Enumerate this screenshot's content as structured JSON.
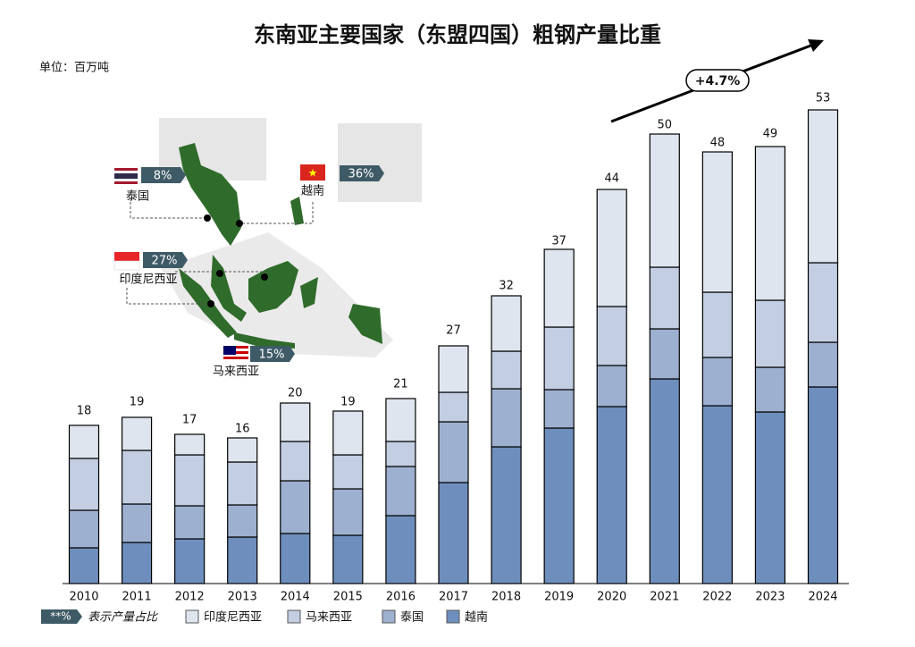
{
  "chart_data": {
    "type": "stacked_bar",
    "title": "东南亚主要国家（东盟四国）粗钢产量比重",
    "unit_label": "单位：百万吨",
    "growth_label": "+4.7%",
    "legend_note": {
      "symbol": "**%",
      "text": "表示产量占比"
    },
    "categories": [
      "2010",
      "2011",
      "2012",
      "2013",
      "2014",
      "2015",
      "2016",
      "2017",
      "2018",
      "2019",
      "2020",
      "2021",
      "2022",
      "2023",
      "2024"
    ],
    "totals": [
      18,
      19,
      17,
      16,
      20,
      19,
      21,
      27,
      32,
      37,
      44,
      50,
      48,
      49,
      53
    ],
    "series": [
      {
        "name": "越南",
        "color": "#6e8fbd",
        "values": [
          4.0,
          4.6,
          5.0,
          5.2,
          5.6,
          5.4,
          7.6,
          11.3,
          15.3,
          17.4,
          19.8,
          22.9,
          19.9,
          19.2,
          22.0
        ]
      },
      {
        "name": "泰国",
        "color": "#9db0d0",
        "values": [
          4.2,
          4.3,
          3.7,
          3.6,
          5.9,
          5.2,
          5.5,
          6.8,
          6.5,
          4.3,
          4.6,
          5.6,
          5.4,
          5.0,
          5.0
        ]
      },
      {
        "name": "马来西亚",
        "color": "#c3cee2",
        "values": [
          5.8,
          6.0,
          5.7,
          4.8,
          4.4,
          3.8,
          2.8,
          3.3,
          4.2,
          7.0,
          6.6,
          6.9,
          7.3,
          7.5,
          8.9
        ]
      },
      {
        "name": "印度尼西亚",
        "color": "#dfe5ef",
        "values": [
          3.7,
          3.7,
          2.3,
          2.7,
          4.3,
          4.9,
          4.8,
          5.2,
          6.2,
          8.7,
          13.1,
          14.9,
          15.7,
          17.2,
          17.1
        ]
      }
    ],
    "legend_order": [
      3,
      2,
      1,
      0
    ],
    "map_callouts": {
      "countries": [
        "泰国",
        "越南",
        "印度尼西亚",
        "马来西亚"
      ],
      "values": [
        8,
        36,
        27,
        15
      ],
      "value_labels": [
        "8%",
        "36%",
        "27%",
        "15%"
      ]
    }
  }
}
